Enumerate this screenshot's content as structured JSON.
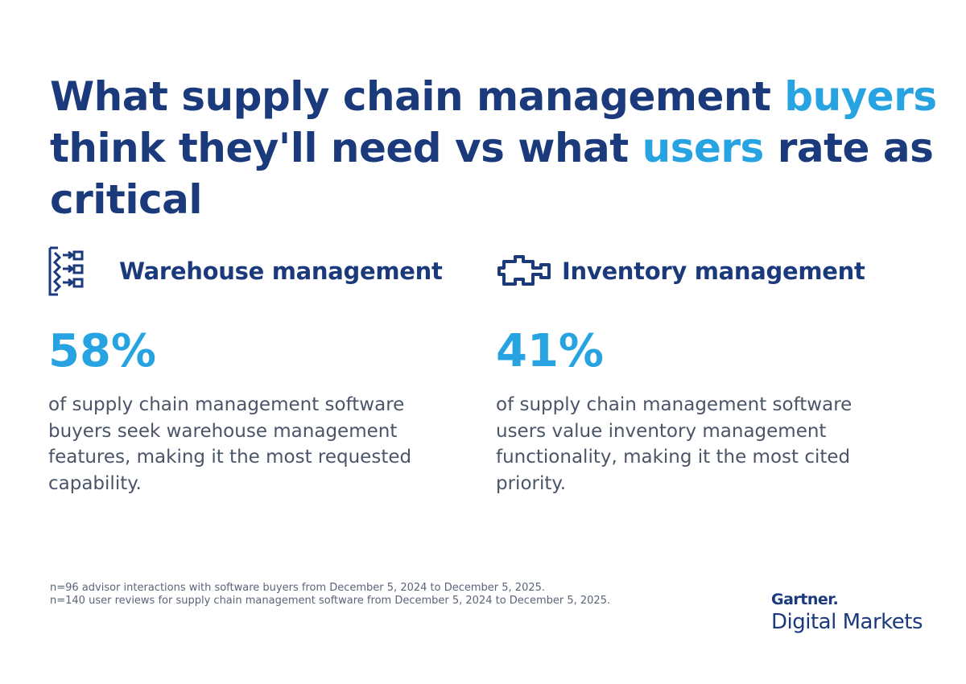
{
  "title": {
    "lines": [
      [
        {
          "text": "What supply chain management ",
          "color": "#1b3a7c"
        },
        {
          "text": "buyers",
          "color": "#27a3e1"
        }
      ],
      [
        {
          "text": "think they'll need vs what ",
          "color": "#1b3a7c"
        },
        {
          "text": "users",
          "color": "#27a3e1"
        },
        {
          "text": " rate as",
          "color": "#1b3a7c"
        }
      ],
      [
        {
          "text": "critical",
          "color": "#1b3a7c"
        }
      ]
    ]
  },
  "cards": [
    {
      "heading": "Warehouse management",
      "stat": "58%",
      "description": "of supply chain management software buyers seek warehouse management features, making it the most requested capability."
    },
    {
      "heading": "Inventory management",
      "stat": "41%",
      "description": "of supply chain management software users value inventory management functionality, making it the most cited priority."
    }
  ],
  "footnotes": [
    "n=96 advisor interactions with software buyers from December 5, 2024 to December 5, 2025.",
    "n=140 user reviews for supply chain management software from December 5, 2024 to December 5, 2025."
  ],
  "logo": {
    "brand": "Gartner.",
    "product": "Digital Markets"
  }
}
